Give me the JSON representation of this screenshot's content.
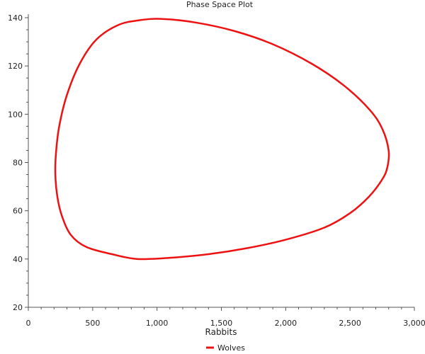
{
  "chart_data": {
    "type": "line",
    "title": "Phase Space Plot",
    "xlabel": "Rabbits",
    "ylabel": "",
    "xlim": [
      0,
      3000
    ],
    "ylim": [
      20,
      140
    ],
    "xticks": [
      "0",
      "500",
      "1,000",
      "1,500",
      "2,000",
      "2,500",
      "3,000"
    ],
    "xtick_values": [
      0,
      500,
      1000,
      1500,
      2000,
      2500,
      3000
    ],
    "yticks": [
      "20",
      "40",
      "60",
      "80",
      "100",
      "120",
      "140"
    ],
    "ytick_values": [
      20,
      40,
      60,
      80,
      100,
      120,
      140
    ],
    "grid": false,
    "legend": "bottom-center",
    "series": [
      {
        "name": "Wolves",
        "color": "#ee1111",
        "x": [
          1040,
          1300,
          1600,
          1900,
          2200,
          2450,
          2650,
          2750,
          2800,
          2790,
          2750,
          2650,
          2500,
          2300,
          2000,
          1700,
          1400,
          1100,
          850,
          650,
          450,
          330,
          260,
          225,
          210,
          215,
          240,
          300,
          400,
          530,
          700,
          870,
          1040
        ],
        "y": [
          139.5,
          138,
          134.5,
          129,
          121,
          112,
          102,
          94,
          85,
          78,
          73,
          66,
          59,
          53,
          48,
          44.5,
          42,
          40.5,
          40,
          42,
          45,
          50,
          58,
          66,
          75,
          84,
          95,
          108,
          121,
          131,
          137,
          139,
          139.5
        ]
      }
    ]
  }
}
